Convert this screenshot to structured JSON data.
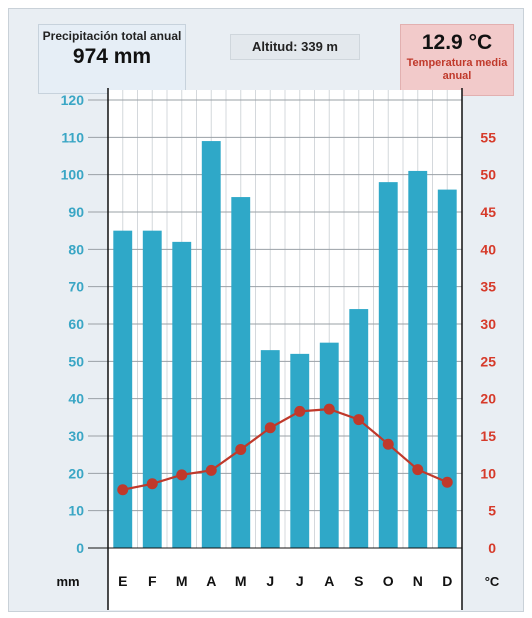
{
  "header": {
    "precip_label": "Precipitación total anual",
    "precip_value": "974 mm",
    "altitude": "Altitud: 339 m",
    "temp_value": "12.9 °C",
    "temp_label": "Temperatura media anual"
  },
  "colors": {
    "bar": "#2fa8c8",
    "line": "#c0392b",
    "left_axis": "#3aa6c5",
    "right_axis": "#d63a2a"
  },
  "chart_data": {
    "type": "bar",
    "categories": [
      "E",
      "F",
      "M",
      "A",
      "M",
      "J",
      "J",
      "A",
      "S",
      "O",
      "N",
      "D"
    ],
    "series": [
      {
        "values": [
          85,
          85,
          82,
          109,
          94,
          53,
          52,
          55,
          64,
          98,
          101,
          96
        ],
        "axis": "left",
        "kind": "bar"
      },
      {
        "values": [
          7.8,
          8.6,
          9.8,
          10.4,
          13.2,
          16.1,
          18.3,
          18.6,
          17.2,
          13.9,
          10.5,
          8.8
        ],
        "axis": "right",
        "kind": "line"
      }
    ],
    "xlabel_left": "mm",
    "xlabel_right": "°C",
    "ylim_left": [
      0,
      120
    ],
    "ylim_right": [
      0,
      60
    ],
    "yticks_left": [
      0,
      10,
      20,
      30,
      40,
      50,
      60,
      70,
      80,
      90,
      100,
      110,
      120
    ],
    "yticks_right": [
      0,
      5,
      10,
      15,
      20,
      25,
      30,
      35,
      40,
      45,
      50,
      55
    ],
    "grid": true
  }
}
